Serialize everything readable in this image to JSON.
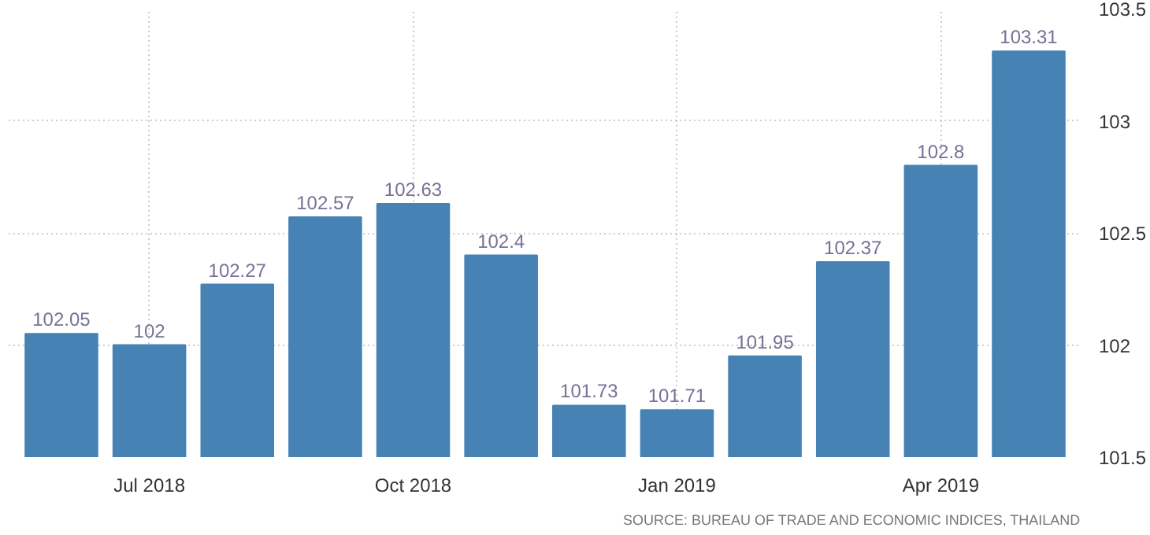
{
  "chart_data": {
    "type": "bar",
    "categories": [
      null,
      "Jul 2018",
      null,
      null,
      "Oct 2018",
      null,
      null,
      "Jan 2019",
      null,
      null,
      "Apr 2019",
      null
    ],
    "values": [
      102.05,
      102,
      102.27,
      102.57,
      102.63,
      102.4,
      101.73,
      101.71,
      101.95,
      102.37,
      102.8,
      103.31
    ],
    "color": "#4682b4",
    "ylim": [
      101.5,
      103.5
    ],
    "yticks": [
      101.5,
      102,
      102.5,
      103,
      103.5
    ],
    "grid": true,
    "data_labels": true,
    "annotations": [
      "SOURCE: BUREAU OF TRADE AND ECONOMIC INDICES, THAILAND"
    ]
  }
}
